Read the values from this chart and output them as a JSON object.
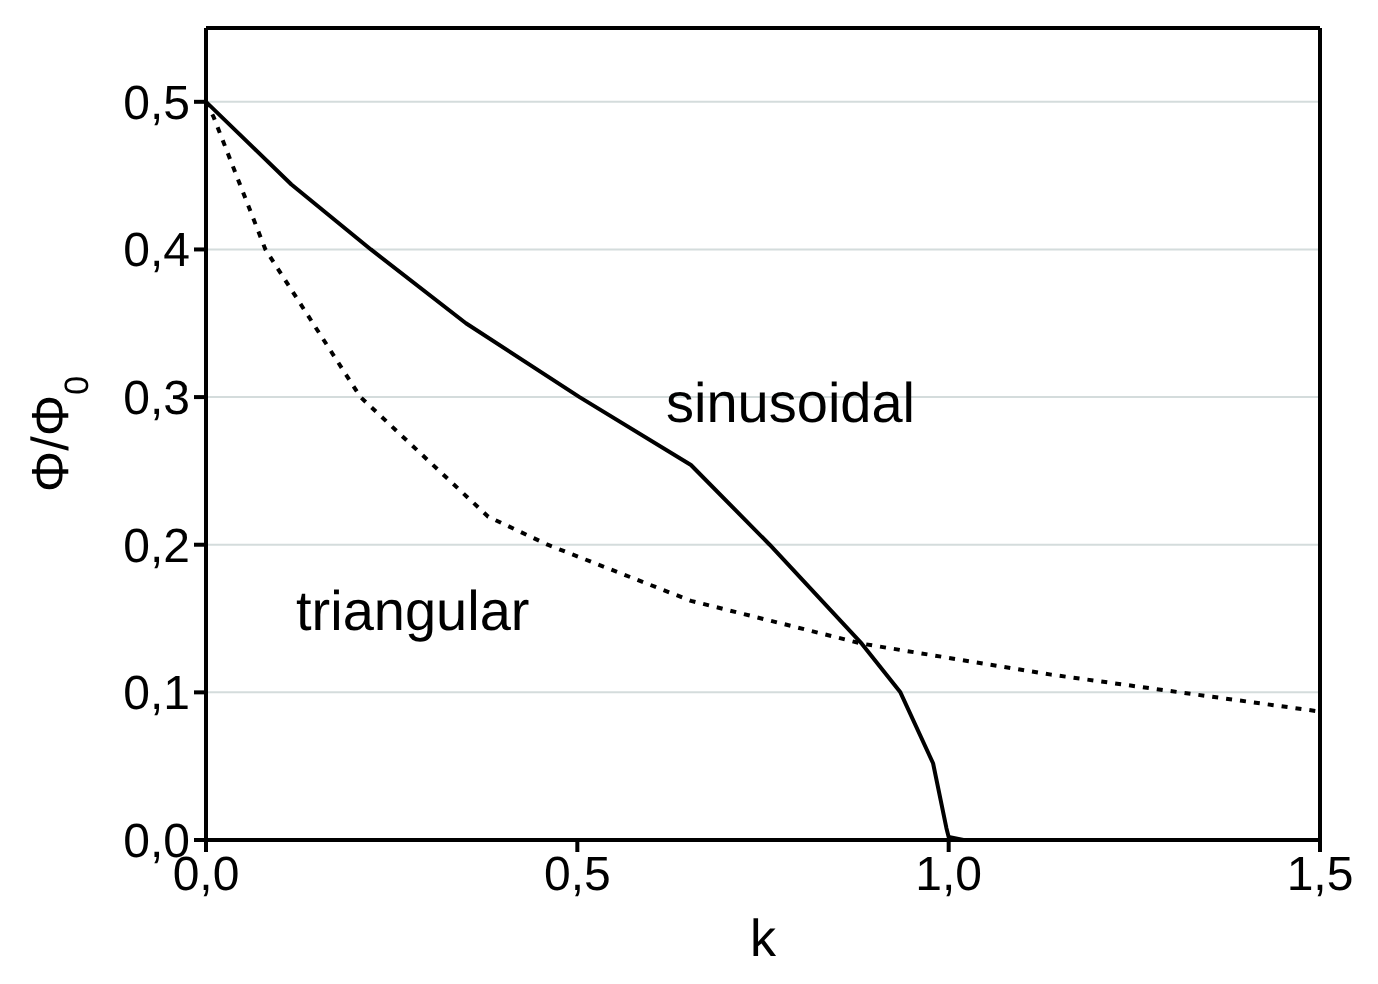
{
  "chart_data": {
    "type": "line",
    "xlabel": "k",
    "ylabel": "Φ/Φ$_{0}$",
    "xlim": [
      0,
      1.5
    ],
    "ylim": [
      0,
      0.55
    ],
    "xticks": [
      {
        "value": 0,
        "label": "0,0"
      },
      {
        "value": 0.5,
        "label": "0,5"
      },
      {
        "value": 1,
        "label": "1,0"
      },
      {
        "value": 1.5,
        "label": "1,5"
      }
    ],
    "yticks": [
      {
        "value": 0,
        "label": "0,0"
      },
      {
        "value": 0.1,
        "label": "0,1"
      },
      {
        "value": 0.2,
        "label": "0,2"
      },
      {
        "value": 0.3,
        "label": "0,3"
      },
      {
        "value": 0.4,
        "label": "0,4"
      },
      {
        "value": 0.5,
        "label": "0,5"
      }
    ],
    "grid": "y",
    "marker": "none",
    "series": [
      {
        "name": "sinusoidal",
        "color": "#000000",
        "line_style": "solid",
        "x": [
          0,
          0.115,
          0.222,
          0.35,
          0.503,
          0.653,
          0.759,
          0.883,
          0.935,
          0.979,
          0.997,
          1.0,
          1.02,
          1.1,
          1.3,
          1.5
        ],
        "values": [
          0.5,
          0.444,
          0.4,
          0.35,
          0.3,
          0.254,
          0.2,
          0.133,
          0.1,
          0.052,
          0.008,
          0.002,
          0,
          0,
          0,
          0
        ]
      },
      {
        "name": "triangular",
        "color": "#000000",
        "line_style": "dotted",
        "x": [
          0,
          0.01,
          0.08,
          0.208,
          0.38,
          0.46,
          0.653,
          0.883,
          1.138,
          1.5
        ],
        "values": [
          0.5,
          0.49,
          0.4,
          0.3,
          0.219,
          0.2,
          0.162,
          0.133,
          0.112,
          0.087
        ]
      }
    ]
  }
}
